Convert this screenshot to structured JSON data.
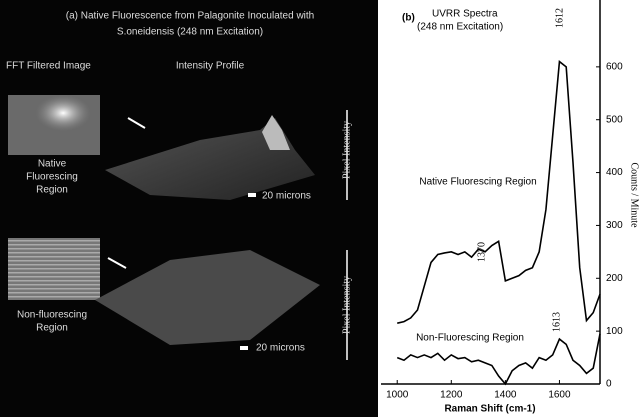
{
  "panel_a": {
    "title_line1": "(a) Native Fluorescence from Palagonite Inoculated with",
    "title_line2": "S.oneidensis (248 nm Excitation)",
    "left_header": "FFT Filtered Image",
    "right_header": "Intensity Profile",
    "top_label": [
      "Native",
      "Fluorescing",
      "Region"
    ],
    "bottom_label": [
      "Non-fluorescing",
      "Region"
    ],
    "scale_top": "20 microns",
    "scale_bottom": "20 microns",
    "axis_top": "Pixel Intensity",
    "axis_bottom": "Pixel Intensity"
  },
  "chart_data": {
    "type": "line",
    "panel_label": "(b)",
    "title": "UVRR Spectra",
    "subtitle": "(248 nm Excitation)",
    "x_label": "Raman Shift (cm-1)",
    "y_label": "Counts / Minute",
    "x": [
      1000,
      1025,
      1050,
      1075,
      1100,
      1125,
      1150,
      1175,
      1200,
      1225,
      1250,
      1275,
      1300,
      1325,
      1350,
      1375,
      1400,
      1425,
      1450,
      1475,
      1500,
      1525,
      1550,
      1575,
      1600,
      1625,
      1650,
      1675,
      1700,
      1725,
      1750
    ],
    "series": [
      {
        "name": "Native Fluorescing Region",
        "color": "#000000",
        "values": [
          115,
          118,
          125,
          140,
          185,
          230,
          245,
          248,
          250,
          245,
          250,
          240,
          255,
          250,
          262,
          270,
          195,
          200,
          205,
          215,
          220,
          250,
          330,
          470,
          610,
          600,
          420,
          220,
          120,
          135,
          170
        ]
      },
      {
        "name": "Non-Fluorescing Region",
        "color": "#000000",
        "values": [
          50,
          45,
          55,
          50,
          55,
          50,
          58,
          45,
          55,
          48,
          50,
          42,
          45,
          40,
          35,
          15,
          0,
          25,
          35,
          40,
          30,
          50,
          45,
          55,
          85,
          75,
          45,
          35,
          20,
          30,
          95
        ]
      }
    ],
    "annotations": [
      "1612",
      "1370",
      "1613"
    ],
    "xlim": [
      940,
      1750
    ],
    "ylim": [
      0,
      700
    ],
    "xticks": [
      1000,
      1200,
      1400,
      1600
    ],
    "yticks": [
      0,
      100,
      200,
      300,
      400,
      500,
      600
    ]
  }
}
